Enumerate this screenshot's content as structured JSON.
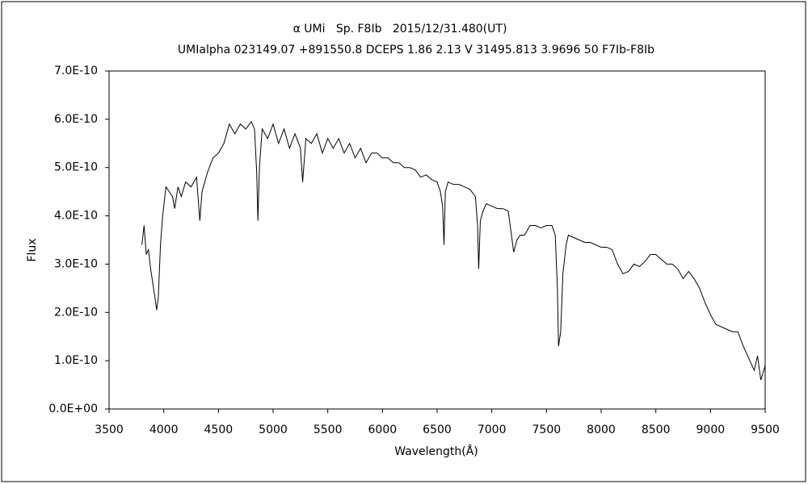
{
  "chart_data": {
    "type": "line",
    "title": "α UMi   Sp. F8Ib   2015/12/31.480(UT)",
    "subtitle": "UMIalpha 023149.07 +891550.8 DCEPS 1.86 2.13 V 31495.813 3.9696 50 F7Ib-F8Ib",
    "x_label": "Wavelength(Å)",
    "y_label": "Flux",
    "color": "#000000",
    "xlim": [
      3500,
      9500
    ],
    "xticks": [
      3500,
      4000,
      4500,
      5000,
      5500,
      6000,
      6500,
      7000,
      7500,
      8000,
      8500,
      9000,
      9500
    ],
    "ylim": [
      0,
      7e-10
    ],
    "yticks": [
      {
        "value": 0,
        "label": "0.0E+00"
      },
      {
        "value": 1e-10,
        "label": "1.0E-10"
      },
      {
        "value": 2e-10,
        "label": "2.0E-10"
      },
      {
        "value": 3e-10,
        "label": "3.0E-10"
      },
      {
        "value": 4e-10,
        "label": "4.0E-10"
      },
      {
        "value": 5e-10,
        "label": "5.0E-10"
      },
      {
        "value": 6e-10,
        "label": "6.0E-10"
      },
      {
        "value": 7e-10,
        "label": "7.0E-10"
      }
    ],
    "x": [
      3800,
      3820,
      3840,
      3860,
      3880,
      3900,
      3920,
      3935,
      3950,
      3970,
      3990,
      4020,
      4050,
      4080,
      4100,
      4130,
      4160,
      4200,
      4250,
      4300,
      4330,
      4350,
      4400,
      4450,
      4500,
      4550,
      4600,
      4650,
      4700,
      4750,
      4800,
      4830,
      4850,
      4861,
      4875,
      4900,
      4950,
      5000,
      5050,
      5100,
      5150,
      5200,
      5250,
      5270,
      5300,
      5350,
      5400,
      5450,
      5500,
      5550,
      5600,
      5650,
      5700,
      5750,
      5800,
      5850,
      5900,
      5950,
      6000,
      6050,
      6100,
      6150,
      6200,
      6250,
      6300,
      6350,
      6400,
      6450,
      6500,
      6530,
      6550,
      6563,
      6575,
      6600,
      6650,
      6700,
      6750,
      6800,
      6850,
      6870,
      6880,
      6895,
      6920,
      6950,
      7000,
      7050,
      7100,
      7150,
      7180,
      7200,
      7230,
      7260,
      7300,
      7350,
      7400,
      7450,
      7500,
      7550,
      7580,
      7600,
      7610,
      7630,
      7650,
      7680,
      7700,
      7750,
      7800,
      7850,
      7900,
      7950,
      8000,
      8050,
      8100,
      8150,
      8200,
      8250,
      8300,
      8350,
      8400,
      8450,
      8500,
      8550,
      8600,
      8650,
      8700,
      8750,
      8800,
      8850,
      8900,
      8950,
      9000,
      9050,
      9100,
      9150,
      9200,
      9250,
      9300,
      9350,
      9400,
      9430,
      9460,
      9500
    ],
    "values": [
      3.4e-10,
      3.8e-10,
      3.2e-10,
      3.3e-10,
      2.9e-10,
      2.6e-10,
      2.3e-10,
      2.05e-10,
      2.3e-10,
      3.4e-10,
      4e-10,
      4.6e-10,
      4.5e-10,
      4.4e-10,
      4.15e-10,
      4.6e-10,
      4.4e-10,
      4.7e-10,
      4.6e-10,
      4.8e-10,
      3.9e-10,
      4.5e-10,
      4.9e-10,
      5.2e-10,
      5.3e-10,
      5.5e-10,
      5.9e-10,
      5.7e-10,
      5.9e-10,
      5.8e-10,
      5.95e-10,
      5.8e-10,
      4.9e-10,
      3.9e-10,
      5e-10,
      5.8e-10,
      5.6e-10,
      5.9e-10,
      5.5e-10,
      5.8e-10,
      5.4e-10,
      5.7e-10,
      5.4e-10,
      4.7e-10,
      5.6e-10,
      5.5e-10,
      5.7e-10,
      5.3e-10,
      5.6e-10,
      5.4e-10,
      5.6e-10,
      5.3e-10,
      5.5e-10,
      5.2e-10,
      5.4e-10,
      5.1e-10,
      5.3e-10,
      5.3e-10,
      5.2e-10,
      5.2e-10,
      5.1e-10,
      5.1e-10,
      5e-10,
      5e-10,
      4.95e-10,
      4.8e-10,
      4.85e-10,
      4.75e-10,
      4.7e-10,
      4.5e-10,
      4.2e-10,
      3.4e-10,
      4.5e-10,
      4.7e-10,
      4.65e-10,
      4.65e-10,
      4.6e-10,
      4.55e-10,
      4.4e-10,
      3.8e-10,
      2.9e-10,
      3.9e-10,
      4.1e-10,
      4.25e-10,
      4.2e-10,
      4.15e-10,
      4.15e-10,
      4.1e-10,
      3.6e-10,
      3.25e-10,
      3.5e-10,
      3.6e-10,
      3.6e-10,
      3.8e-10,
      3.8e-10,
      3.75e-10,
      3.8e-10,
      3.8e-10,
      3.6e-10,
      2.5e-10,
      1.3e-10,
      1.6e-10,
      2.8e-10,
      3.4e-10,
      3.6e-10,
      3.55e-10,
      3.5e-10,
      3.45e-10,
      3.45e-10,
      3.4e-10,
      3.35e-10,
      3.35e-10,
      3.3e-10,
      3e-10,
      2.8e-10,
      2.85e-10,
      3e-10,
      2.95e-10,
      3.05e-10,
      3.2e-10,
      3.2e-10,
      3.1e-10,
      3e-10,
      3e-10,
      2.9e-10,
      2.7e-10,
      2.85e-10,
      2.7e-10,
      2.5e-10,
      2.2e-10,
      1.95e-10,
      1.75e-10,
      1.7e-10,
      1.65e-10,
      1.6e-10,
      1.6e-10,
      1.3e-10,
      1.05e-10,
      8e-11,
      1.1e-10,
      6e-11,
      9e-11
    ]
  }
}
